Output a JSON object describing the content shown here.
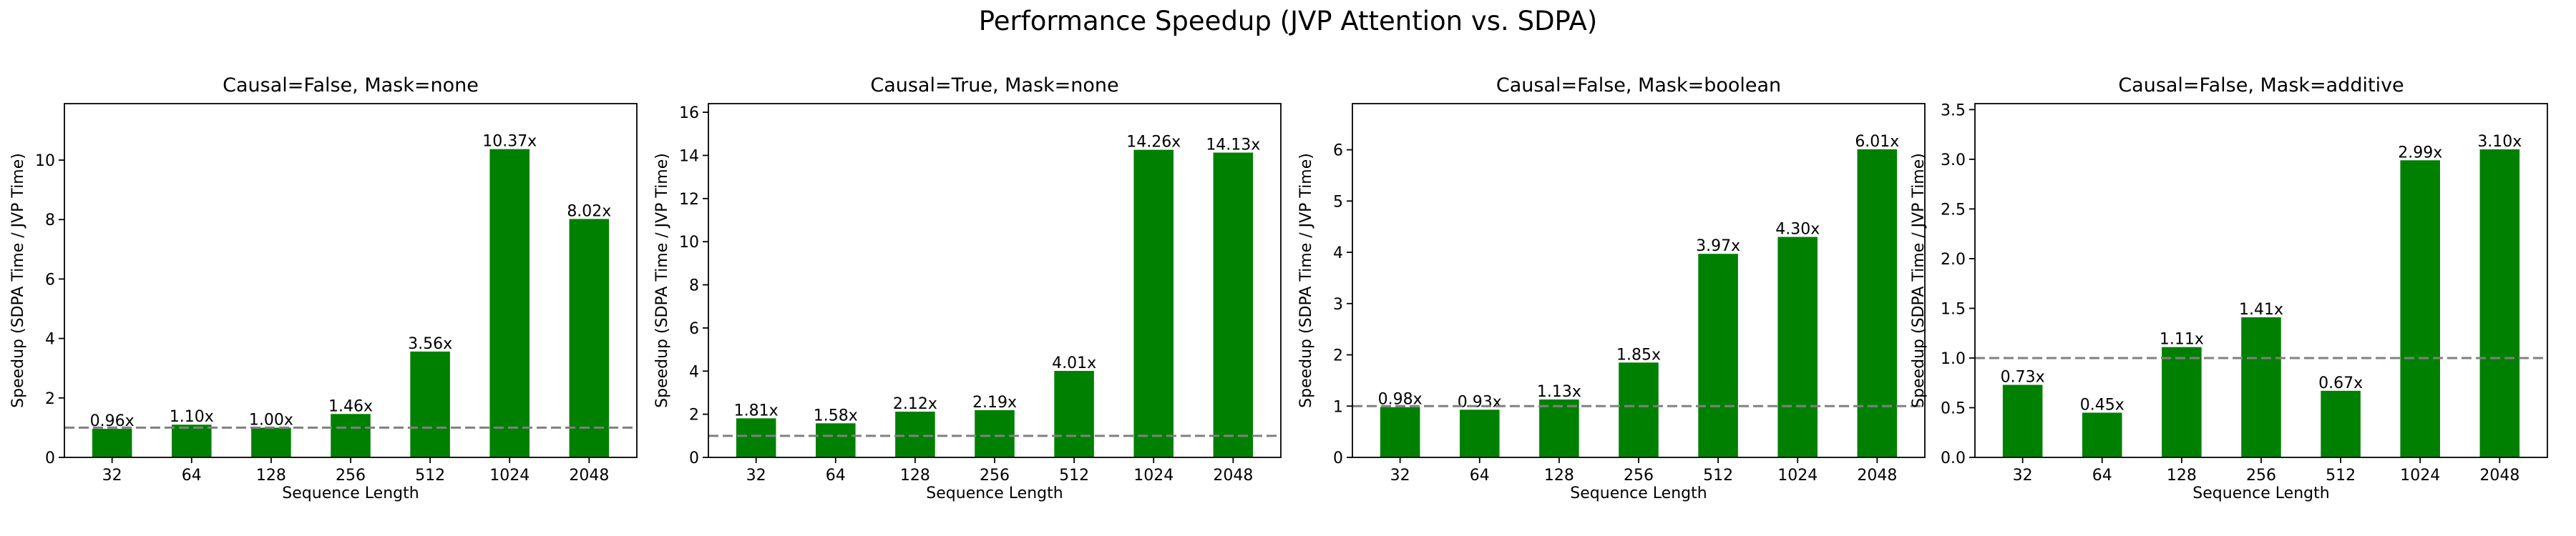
{
  "figure": {
    "title": "Performance Speedup (JVP Attention vs. SDPA)"
  },
  "colors": {
    "bar": "#008000",
    "reference_line": "#808080",
    "axis": "#000000"
  },
  "chart_data": [
    {
      "type": "bar",
      "title": "Causal=False, Mask=none",
      "xlabel": "Sequence Length",
      "ylabel": "Speedup (SDPA Time / JVP Time)",
      "categories": [
        "32",
        "64",
        "128",
        "256",
        "512",
        "1024",
        "2048"
      ],
      "values": [
        0.96,
        1.1,
        1.0,
        1.46,
        3.56,
        10.37,
        8.02
      ],
      "value_labels": [
        "0.96x",
        "1.10x",
        "1.00x",
        "1.46x",
        "3.56x",
        "10.37x",
        "8.02x"
      ],
      "ylim": [
        0,
        11.9
      ],
      "yticks": [
        0,
        2,
        4,
        6,
        8,
        10
      ],
      "ytick_labels": [
        "0",
        "2",
        "4",
        "6",
        "8",
        "10"
      ],
      "reference_line": 1.0,
      "grid": false
    },
    {
      "type": "bar",
      "title": "Causal=True, Mask=none",
      "xlabel": "Sequence Length",
      "ylabel": "Speedup (SDPA Time / JVP Time)",
      "categories": [
        "32",
        "64",
        "128",
        "256",
        "512",
        "1024",
        "2048"
      ],
      "values": [
        1.81,
        1.58,
        2.12,
        2.19,
        4.01,
        14.26,
        14.13
      ],
      "value_labels": [
        "1.81x",
        "1.58x",
        "2.12x",
        "2.19x",
        "4.01x",
        "14.26x",
        "14.13x"
      ],
      "ylim": [
        0,
        16.4
      ],
      "yticks": [
        0,
        2,
        4,
        6,
        8,
        10,
        12,
        14,
        16
      ],
      "ytick_labels": [
        "0",
        "2",
        "4",
        "6",
        "8",
        "10",
        "12",
        "14",
        "16"
      ],
      "reference_line": 1.0,
      "grid": false
    },
    {
      "type": "bar",
      "title": "Causal=False, Mask=boolean",
      "xlabel": "Sequence Length",
      "ylabel": "Speedup (SDPA Time / JVP Time)",
      "categories": [
        "32",
        "64",
        "128",
        "256",
        "512",
        "1024",
        "2048"
      ],
      "values": [
        0.98,
        0.93,
        1.13,
        1.85,
        3.97,
        4.3,
        6.01
      ],
      "value_labels": [
        "0.98x",
        "0.93x",
        "1.13x",
        "1.85x",
        "3.97x",
        "4.30x",
        "6.01x"
      ],
      "ylim": [
        0,
        6.9
      ],
      "yticks": [
        0,
        1,
        2,
        3,
        4,
        5,
        6
      ],
      "ytick_labels": [
        "0",
        "1",
        "2",
        "3",
        "4",
        "5",
        "6"
      ],
      "reference_line": 1.0,
      "grid": false
    },
    {
      "type": "bar",
      "title": "Causal=False, Mask=additive",
      "xlabel": "Sequence Length",
      "ylabel": "Speedup (SDPA Time / JVP Time)",
      "categories": [
        "32",
        "64",
        "128",
        "256",
        "512",
        "1024",
        "2048"
      ],
      "values": [
        0.73,
        0.45,
        1.11,
        1.41,
        0.67,
        2.99,
        3.1
      ],
      "value_labels": [
        "0.73x",
        "0.45x",
        "1.11x",
        "1.41x",
        "0.67x",
        "2.99x",
        "3.10x"
      ],
      "ylim": [
        0,
        3.56
      ],
      "yticks": [
        0,
        0.5,
        1.0,
        1.5,
        2.0,
        2.5,
        3.0,
        3.5
      ],
      "ytick_labels": [
        "0.0",
        "0.5",
        "1.0",
        "1.5",
        "2.0",
        "2.5",
        "3.0",
        "3.5"
      ],
      "reference_line": 1.0,
      "grid": false
    }
  ]
}
